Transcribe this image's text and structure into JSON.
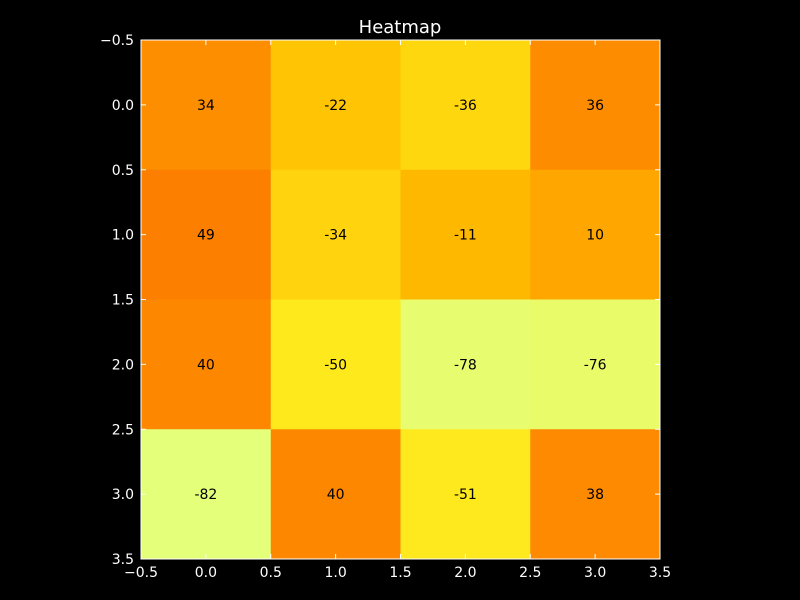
{
  "chart_data": {
    "type": "heatmap",
    "title": "Heatmap",
    "xlabel": "",
    "ylabel": "",
    "colormap": "Wistia",
    "xlim": [
      -0.5,
      3.5
    ],
    "ylim": [
      3.5,
      -0.5
    ],
    "x_ticks": [
      -0.5,
      0.0,
      0.5,
      1.0,
      1.5,
      2.0,
      2.5,
      3.0,
      3.5
    ],
    "y_ticks": [
      -0.5,
      0.0,
      0.5,
      1.0,
      1.5,
      2.0,
      2.5,
      3.0,
      3.5
    ],
    "x_tick_labels": [
      "−0.5",
      "0.0",
      "0.5",
      "1.0",
      "1.5",
      "2.0",
      "2.5",
      "3.0",
      "3.5"
    ],
    "y_tick_labels": [
      "−0.5",
      "0.0",
      "0.5",
      "1.0",
      "1.5",
      "2.0",
      "2.5",
      "3.0",
      "3.5"
    ],
    "values": [
      [
        34,
        -22,
        -36,
        36
      ],
      [
        49,
        -34,
        -11,
        10
      ],
      [
        40,
        -50,
        -78,
        -76
      ],
      [
        -82,
        40,
        -51,
        38
      ]
    ],
    "cell_labels": [
      [
        "34",
        "-22",
        "-36",
        "36"
      ],
      [
        "49",
        "-34",
        "-11",
        "10"
      ],
      [
        "40",
        "-50",
        "-78",
        "-76"
      ],
      [
        "-82",
        "40",
        "-51",
        "38"
      ]
    ],
    "grid": false,
    "legend": "none"
  }
}
